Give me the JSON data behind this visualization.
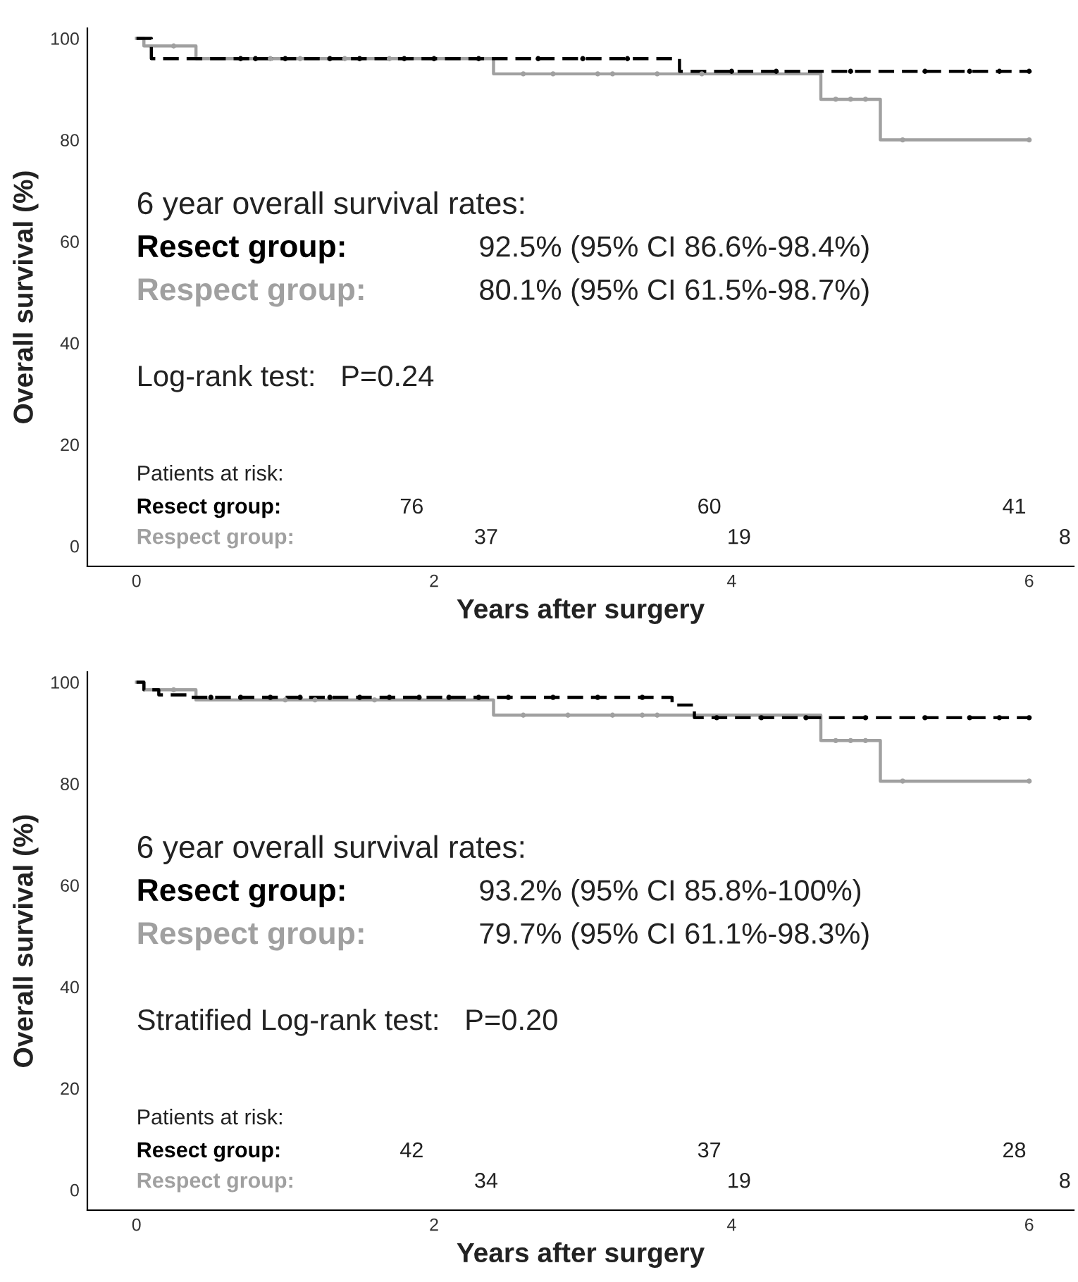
{
  "chart_data": [
    {
      "type": "step",
      "xlabel": "Years after surgery",
      "ylabel": "Overall survival (%)",
      "xlim": [
        -0.33,
        6.3
      ],
      "ylim": [
        -4,
        102
      ],
      "xticks": [
        0,
        2,
        4,
        6
      ],
      "yticks": [
        0,
        20,
        40,
        60,
        80,
        100
      ],
      "grid": false,
      "legend": false,
      "series": [
        {
          "color": "#000000",
          "line_style": "dashed",
          "x": [
            0,
            0.1,
            3.65,
            6.0
          ],
          "values": [
            100,
            96,
            93.5,
            93.5
          ]
        },
        {
          "color": "#a0a0a0",
          "line_style": "solid",
          "x": [
            0,
            0.05,
            0.4,
            2.4,
            4.6,
            5.0,
            6.0
          ],
          "values": [
            100,
            98.5,
            96,
            93,
            88,
            80,
            80
          ]
        },
        {
          "type": "scatter",
          "color": "#000000",
          "marker": "circle",
          "x": [
            0.7,
            0.8,
            1.0,
            1.3,
            1.5,
            1.8,
            2.0,
            2.3,
            2.7,
            3.0,
            3.3,
            4.0,
            4.3,
            4.8,
            5.3,
            5.6,
            5.8,
            6.0
          ],
          "values": [
            96,
            96,
            96,
            96,
            96,
            96,
            96,
            96,
            96,
            96,
            96,
            93.5,
            93.5,
            93.5,
            93.5,
            93.5,
            93.5,
            93.5
          ]
        },
        {
          "type": "scatter",
          "color": "#a0a0a0",
          "marker": "circle",
          "x": [
            0.25,
            0.9,
            1.1,
            1.4,
            1.7,
            2.6,
            2.8,
            3.1,
            3.2,
            3.5,
            3.8,
            4.7,
            4.8,
            4.9,
            5.15,
            6.0
          ],
          "values": [
            98.5,
            96,
            96,
            96,
            96,
            93,
            93,
            93,
            93,
            93,
            93,
            88,
            88,
            88,
            80,
            80
          ]
        }
      ],
      "annotations": [
        "6 year overall survival rates:",
        "Resect group:",
        "92.5% (95% CI 86.6%-98.4%)",
        "Respect group:",
        "80.1% (95% CI 61.5%-98.7%)",
        "Log-rank test:   P=0.24",
        "Patients at risk:",
        "Resect group:",
        "76",
        "60",
        "41",
        "Respect group:",
        "37",
        "19",
        "8"
      ]
    },
    {
      "type": "step",
      "xlabel": "Years after surgery",
      "ylabel": "Overall survival (%)",
      "xlim": [
        -0.33,
        6.3
      ],
      "ylim": [
        -4,
        102
      ],
      "xticks": [
        0,
        2,
        4,
        6
      ],
      "yticks": [
        0,
        20,
        40,
        60,
        80,
        100
      ],
      "grid": false,
      "legend": false,
      "series": [
        {
          "color": "#000000",
          "line_style": "dashed",
          "x": [
            0,
            0.05,
            0.15,
            0.35,
            3.6,
            3.75,
            6.0
          ],
          "values": [
            100,
            98.5,
            97.5,
            97,
            95.5,
            93,
            93
          ]
        },
        {
          "color": "#a0a0a0",
          "line_style": "solid",
          "x": [
            0,
            0.05,
            0.4,
            2.4,
            4.6,
            5.0,
            6.0
          ],
          "values": [
            100,
            98.5,
            96.5,
            93.5,
            88.5,
            80.5,
            80.5
          ]
        },
        {
          "type": "scatter",
          "color": "#000000",
          "marker": "circle",
          "x": [
            0.5,
            0.7,
            0.9,
            1.1,
            1.3,
            1.5,
            1.7,
            1.9,
            2.1,
            2.3,
            2.5,
            2.8,
            3.1,
            3.4,
            3.9,
            4.2,
            4.5,
            4.9,
            5.3,
            5.6,
            5.8,
            6.0
          ],
          "values": [
            97,
            97,
            97,
            97,
            97,
            97,
            97,
            97,
            97,
            97,
            97,
            97,
            97,
            97,
            93,
            93,
            93,
            93,
            93,
            93,
            93,
            93
          ]
        },
        {
          "type": "scatter",
          "color": "#a0a0a0",
          "marker": "circle",
          "x": [
            0.25,
            1.0,
            1.2,
            1.6,
            2.6,
            2.9,
            3.2,
            3.4,
            3.5,
            4.7,
            4.8,
            4.9,
            5.15,
            6.0
          ],
          "values": [
            98.5,
            96.5,
            96.5,
            96.5,
            93.5,
            93.5,
            93.5,
            93.5,
            93.5,
            88.5,
            88.5,
            88.5,
            80.5,
            80.5
          ]
        }
      ],
      "annotations": [
        "6 year overall survival rates:",
        "Resect group:",
        "93.2% (95% CI 85.8%-100%)",
        "Respect group:",
        "79.7% (95% CI 61.1%-98.3%)",
        "Stratified Log-rank test:   P=0.20",
        "Patients at risk:",
        "Resect group:",
        "42",
        "37",
        "28",
        "Respect group:",
        "34",
        "19",
        "8"
      ]
    }
  ]
}
